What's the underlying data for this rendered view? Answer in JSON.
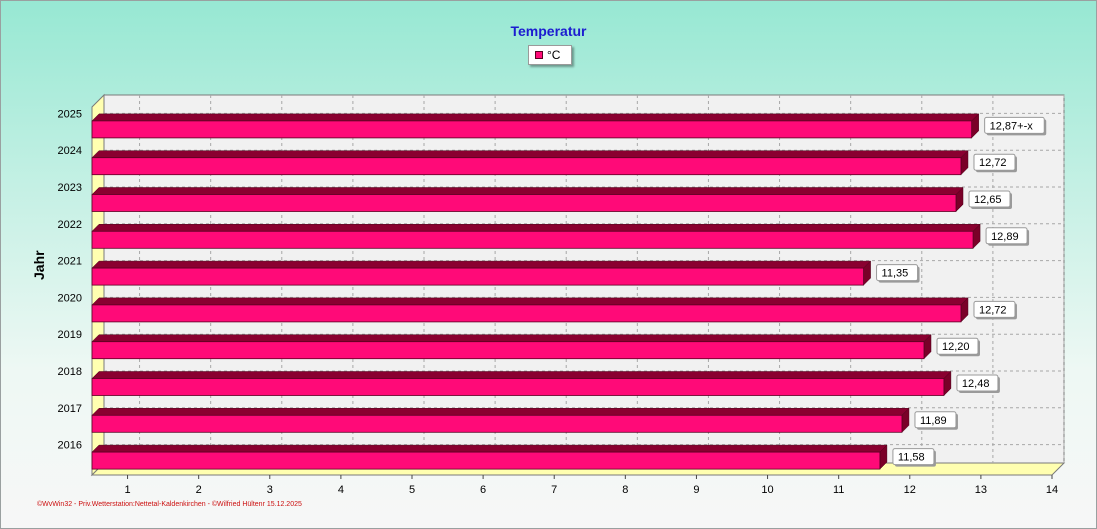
{
  "chart_data": {
    "type": "bar",
    "orientation": "horizontal",
    "title": "Temperatur",
    "ylabel": "Jahr",
    "xlabel": "",
    "categories": [
      "2016",
      "2017",
      "2018",
      "2019",
      "2020",
      "2021",
      "2022",
      "2023",
      "2024",
      "2025"
    ],
    "series": [
      {
        "name": "°C",
        "color": "#ff0a78",
        "values": [
          11.58,
          11.89,
          12.48,
          12.2,
          12.72,
          11.35,
          12.89,
          12.65,
          12.72,
          12.87
        ],
        "data_labels": [
          "11,58",
          "11,89",
          "12,48",
          "12,20",
          "12,72",
          "11,35",
          "12,89",
          "12,65",
          "12,72",
          "12,87+-x"
        ]
      }
    ],
    "xlim": [
      0.5,
      14
    ],
    "xticks": [
      "1",
      "2",
      "3",
      "4",
      "5",
      "6",
      "7",
      "8",
      "9",
      "10",
      "11",
      "12",
      "13",
      "14"
    ],
    "grid": true,
    "legend_position": "top-center"
  },
  "footer": "©WvWin32 - Priv.Wetterstation:Nettetal-Kaldenkirchen - ©Wilfried Hültenr 15.12.2025"
}
